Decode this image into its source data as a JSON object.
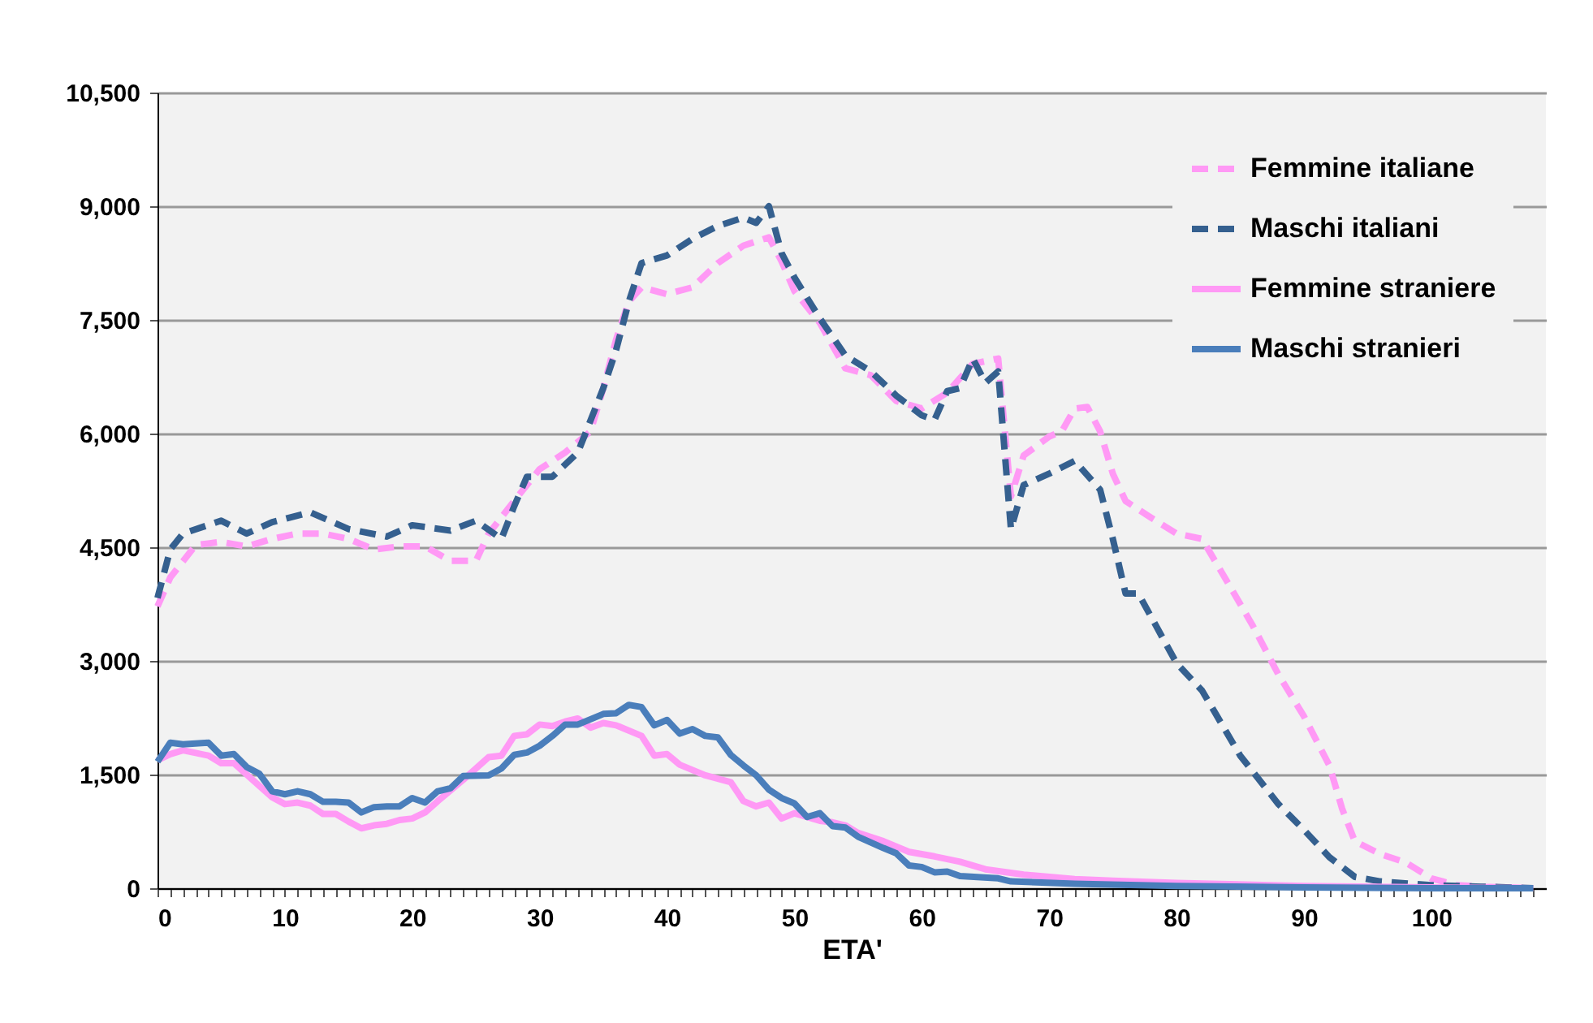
{
  "chart_data": {
    "type": "line",
    "xlabel": "ETA'",
    "xlim": [
      0,
      109
    ],
    "xticks": [
      0,
      {
        "value": 1,
        "label": null
      },
      {
        "value": 2,
        "label": null
      },
      {
        "value": 3,
        "label": null
      },
      {
        "value": 4,
        "label": null
      },
      {
        "value": 5,
        "label": null
      },
      {
        "value": 6,
        "label": null
      },
      {
        "value": 7,
        "label": null
      },
      {
        "value": 8,
        "label": null
      },
      {
        "value": 9,
        "label": null
      },
      10,
      {
        "value": 11,
        "label": null
      },
      {
        "value": 12,
        "label": null
      },
      {
        "value": 13,
        "label": null
      },
      {
        "value": 14,
        "label": null
      },
      {
        "value": 15,
        "label": null
      },
      {
        "value": 16,
        "label": null
      },
      {
        "value": 17,
        "label": null
      },
      {
        "value": 18,
        "label": null
      },
      {
        "value": 19,
        "label": null
      },
      20,
      {
        "value": 21,
        "label": null
      },
      {
        "value": 22,
        "label": null
      },
      {
        "value": 23,
        "label": null
      },
      {
        "value": 24,
        "label": null
      },
      {
        "value": 25,
        "label": null
      },
      {
        "value": 26,
        "label": null
      },
      {
        "value": 27,
        "label": null
      },
      {
        "value": 28,
        "label": null
      },
      {
        "value": 29,
        "label": null
      },
      30,
      {
        "value": 31,
        "label": null
      },
      {
        "value": 32,
        "label": null
      },
      {
        "value": 33,
        "label": null
      },
      {
        "value": 34,
        "label": null
      },
      {
        "value": 35,
        "label": null
      },
      {
        "value": 36,
        "label": null
      },
      {
        "value": 37,
        "label": null
      },
      {
        "value": 38,
        "label": null
      },
      {
        "value": 39,
        "label": null
      },
      40,
      {
        "value": 41,
        "label": null
      },
      {
        "value": 42,
        "label": null
      },
      {
        "value": 43,
        "label": null
      },
      {
        "value": 44,
        "label": null
      },
      {
        "value": 45,
        "label": null
      },
      {
        "value": 46,
        "label": null
      },
      {
        "value": 47,
        "label": null
      },
      {
        "value": 48,
        "label": null
      },
      {
        "value": 49,
        "label": null
      },
      50,
      {
        "value": 51,
        "label": null
      },
      {
        "value": 52,
        "label": null
      },
      {
        "value": 53,
        "label": null
      },
      {
        "value": 54,
        "label": null
      },
      {
        "value": 55,
        "label": null
      },
      {
        "value": 56,
        "label": null
      },
      {
        "value": 57,
        "label": null
      },
      {
        "value": 58,
        "label": null
      },
      {
        "value": 59,
        "label": null
      },
      60,
      {
        "value": 61,
        "label": null
      },
      {
        "value": 62,
        "label": null
      },
      {
        "value": 63,
        "label": null
      },
      {
        "value": 64,
        "label": null
      },
      {
        "value": 65,
        "label": null
      },
      {
        "value": 66,
        "label": null
      },
      {
        "value": 67,
        "label": null
      },
      {
        "value": 68,
        "label": null
      },
      {
        "value": 69,
        "label": null
      },
      70,
      {
        "value": 71,
        "label": null
      },
      {
        "value": 72,
        "label": null
      },
      {
        "value": 73,
        "label": null
      },
      {
        "value": 74,
        "label": null
      },
      {
        "value": 75,
        "label": null
      },
      {
        "value": 76,
        "label": null
      },
      {
        "value": 77,
        "label": null
      },
      {
        "value": 78,
        "label": null
      },
      {
        "value": 79,
        "label": null
      },
      80,
      {
        "value": 81,
        "label": null
      },
      {
        "value": 82,
        "label": null
      },
      {
        "value": 83,
        "label": null
      },
      {
        "value": 84,
        "label": null
      },
      {
        "value": 85,
        "label": null
      },
      {
        "value": 86,
        "label": null
      },
      {
        "value": 87,
        "label": null
      },
      {
        "value": 88,
        "label": null
      },
      {
        "value": 89,
        "label": null
      },
      90,
      {
        "value": 91,
        "label": null
      },
      {
        "value": 92,
        "label": null
      },
      {
        "value": 93,
        "label": null
      },
      {
        "value": 94,
        "label": null
      },
      {
        "value": 95,
        "label": null
      },
      {
        "value": 96,
        "label": null
      },
      {
        "value": 97,
        "label": null
      },
      {
        "value": 98,
        "label": null
      },
      {
        "value": 99,
        "label": null
      },
      100,
      {
        "value": 101,
        "label": null
      },
      {
        "value": 102,
        "label": null
      },
      {
        "value": 103,
        "label": null
      },
      {
        "value": 104,
        "label": null
      },
      {
        "value": 105,
        "label": null
      },
      {
        "value": 106,
        "label": null
      },
      {
        "value": 107,
        "label": null
      },
      {
        "value": 108,
        "label": null
      }
    ],
    "ylim": [
      0,
      10500
    ],
    "yticks": [
      0,
      {
        "value": 1500,
        "label": "1,500"
      },
      {
        "value": 3000,
        "label": "3,000"
      },
      {
        "value": 4500,
        "label": "4,500"
      },
      {
        "value": 6000,
        "label": "6,000"
      },
      {
        "value": 7500,
        "label": "7,500"
      },
      {
        "value": 9000,
        "label": "9,000"
      },
      {
        "value": 10500,
        "label": "10,500"
      }
    ],
    "grid": "y",
    "legend": "top right",
    "series": [
      {
        "name": "Femmine italiane",
        "color": "#ff99f5",
        "line_style": "dashed",
        "x": [
          0,
          1,
          3,
          5,
          7,
          9,
          11,
          13,
          15,
          17,
          19,
          21,
          23,
          25,
          26,
          28,
          30,
          32,
          34,
          35,
          36,
          37,
          38,
          40,
          42,
          44,
          46,
          48,
          49,
          50,
          52,
          54,
          56,
          58,
          60,
          62,
          64,
          66,
          67,
          68,
          70,
          71,
          72,
          73,
          74,
          75,
          76,
          78,
          80,
          82,
          84,
          86,
          88,
          90,
          92,
          93,
          94,
          96,
          98,
          100,
          102,
          104,
          108
        ],
        "values": [
          3720,
          4100,
          4530,
          4570,
          4510,
          4610,
          4680,
          4680,
          4610,
          4470,
          4510,
          4510,
          4320,
          4320,
          4680,
          5110,
          5530,
          5750,
          6030,
          6600,
          7240,
          7740,
          7930,
          7840,
          7930,
          8250,
          8480,
          8590,
          8270,
          7880,
          7460,
          6860,
          6770,
          6430,
          6330,
          6540,
          6920,
          6990,
          5170,
          5710,
          5960,
          6030,
          6330,
          6350,
          6030,
          5470,
          5110,
          4890,
          4680,
          4610,
          4040,
          3460,
          2820,
          2270,
          1620,
          1050,
          620,
          450,
          340,
          130,
          40,
          20,
          0
        ]
      },
      {
        "name": "Maschi italiani",
        "color": "#35608f",
        "line_style": "dashed",
        "x": [
          0,
          1,
          2,
          5,
          7,
          9,
          12,
          15,
          18,
          20,
          23,
          25,
          27,
          28,
          29,
          31,
          33,
          35,
          36,
          37,
          38,
          40,
          42,
          44,
          46,
          47,
          48,
          49,
          50,
          52,
          54,
          56,
          58,
          60,
          61,
          62,
          63,
          64,
          65,
          66,
          67,
          68,
          70,
          72,
          74,
          75,
          76,
          77,
          80,
          82,
          85,
          88,
          90,
          92,
          94,
          96,
          100,
          104,
          108
        ],
        "values": [
          3830,
          4470,
          4680,
          4850,
          4680,
          4830,
          4960,
          4740,
          4640,
          4790,
          4720,
          4850,
          4610,
          5040,
          5430,
          5430,
          5750,
          6600,
          7100,
          7740,
          8250,
          8350,
          8570,
          8740,
          8850,
          8780,
          9000,
          8380,
          8060,
          7520,
          7030,
          6820,
          6500,
          6240,
          6180,
          6560,
          6600,
          6990,
          6670,
          6820,
          4740,
          5320,
          5470,
          5640,
          5260,
          4610,
          3890,
          3890,
          2970,
          2610,
          1750,
          1110,
          770,
          410,
          150,
          90,
          40,
          20,
          0
        ]
      },
      {
        "name": "Femmine straniere",
        "color": "#ff99f5",
        "line_style": "solid",
        "x": [
          0,
          1,
          2,
          4,
          5,
          6,
          8,
          9,
          10,
          11,
          12,
          13,
          14,
          15,
          16,
          17,
          18,
          19,
          20,
          21,
          22,
          24,
          26,
          27,
          28,
          29,
          30,
          31,
          32,
          33,
          34,
          35,
          36,
          38,
          39,
          40,
          41,
          42,
          43,
          45,
          46,
          47,
          48,
          49,
          50,
          52,
          53,
          54,
          55,
          57,
          59,
          61,
          63,
          65,
          68,
          72,
          75,
          80,
          90,
          100,
          108
        ],
        "values": [
          1690,
          1770,
          1820,
          1750,
          1650,
          1650,
          1350,
          1200,
          1110,
          1130,
          1090,
          980,
          980,
          880,
          790,
          830,
          850,
          900,
          920,
          1000,
          1150,
          1430,
          1730,
          1750,
          2010,
          2030,
          2160,
          2140,
          2200,
          2240,
          2120,
          2180,
          2150,
          2010,
          1750,
          1770,
          1630,
          1560,
          1490,
          1400,
          1150,
          1080,
          1130,
          920,
          990,
          890,
          870,
          830,
          730,
          620,
          480,
          420,
          350,
          250,
          180,
          120,
          100,
          70,
          30,
          10,
          0
        ]
      },
      {
        "name": "Maschi stranieri",
        "color": "#4a7ebb",
        "line_style": "solid",
        "x": [
          0,
          1,
          2,
          4,
          5,
          6,
          7,
          8,
          9,
          10,
          11,
          12,
          13,
          14,
          15,
          16,
          17,
          18,
          19,
          20,
          21,
          22,
          23,
          24,
          26,
          27,
          28,
          29,
          30,
          31,
          32,
          33,
          34,
          35,
          36,
          37,
          38,
          39,
          40,
          41,
          42,
          43,
          44,
          45,
          46,
          47,
          48,
          49,
          50,
          51,
          52,
          53,
          54,
          55,
          57,
          58,
          59,
          60,
          61,
          62,
          63,
          66,
          67,
          72,
          80,
          90,
          100,
          108
        ],
        "values": [
          1670,
          1920,
          1900,
          1920,
          1750,
          1770,
          1600,
          1510,
          1280,
          1240,
          1280,
          1240,
          1140,
          1140,
          1130,
          1000,
          1070,
          1080,
          1080,
          1190,
          1130,
          1280,
          1320,
          1480,
          1490,
          1580,
          1760,
          1790,
          1880,
          2010,
          2160,
          2160,
          2230,
          2300,
          2310,
          2420,
          2390,
          2150,
          2220,
          2040,
          2100,
          2010,
          1990,
          1760,
          1620,
          1490,
          1300,
          1190,
          1120,
          940,
          990,
          820,
          800,
          680,
          530,
          460,
          300,
          280,
          210,
          220,
          160,
          130,
          90,
          60,
          30,
          10,
          0,
          0
        ]
      }
    ]
  }
}
